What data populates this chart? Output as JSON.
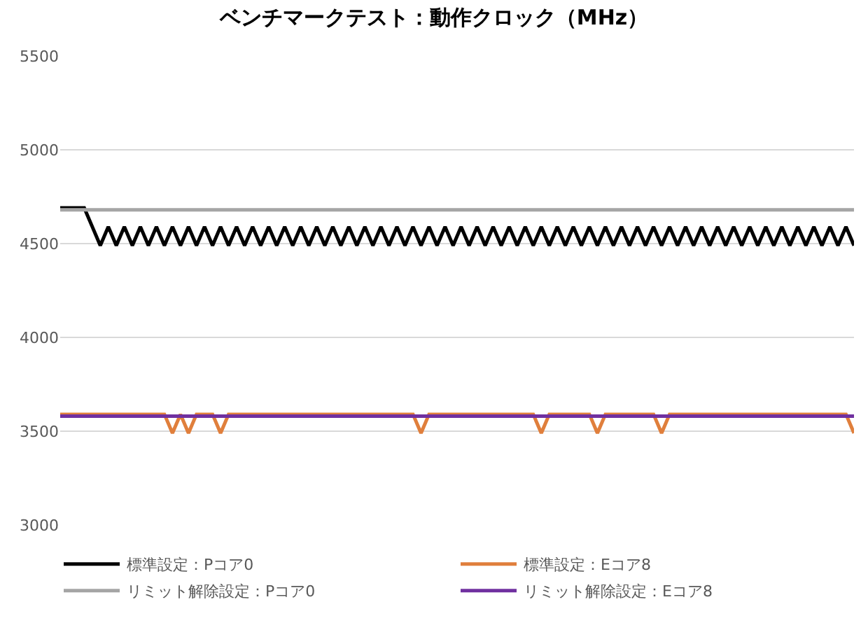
{
  "chart_data": {
    "type": "line",
    "title": "ベンチマークテスト：動作クロック（MHz）",
    "categories": [
      null,
      null,
      null,
      null,
      null,
      null,
      null,
      null,
      null,
      null,
      null,
      null,
      null,
      null,
      null,
      null,
      null,
      null,
      null,
      null,
      null,
      null,
      null,
      null,
      null,
      null,
      null,
      null,
      null,
      null,
      null,
      null,
      null,
      null,
      null,
      null,
      null,
      null,
      null,
      null,
      null,
      null,
      null,
      null,
      null,
      null,
      null,
      null,
      null,
      null,
      null,
      null,
      null,
      null,
      null,
      null,
      null,
      null,
      null,
      null,
      null,
      null,
      null,
      null,
      null,
      null,
      null,
      null,
      null,
      null,
      null,
      null,
      null,
      null,
      null,
      null,
      null,
      null,
      null,
      null,
      null,
      null,
      null,
      null,
      null,
      null,
      null,
      null,
      null,
      null,
      null,
      null,
      null,
      null,
      null,
      null,
      null,
      null,
      null,
      null
    ],
    "series": [
      {
        "name": "標準設定：Pコア0",
        "color": "#000000",
        "values": [
          4690,
          4690,
          4690,
          4690,
          4590,
          4490,
          4590,
          4490,
          4590,
          4490,
          4590,
          4490,
          4590,
          4490,
          4590,
          4490,
          4590,
          4490,
          4590,
          4490,
          4590,
          4490,
          4590,
          4490,
          4590,
          4490,
          4590,
          4490,
          4590,
          4490,
          4590,
          4490,
          4590,
          4490,
          4590,
          4490,
          4590,
          4490,
          4590,
          4490,
          4590,
          4490,
          4590,
          4490,
          4590,
          4490,
          4590,
          4490,
          4590,
          4490,
          4590,
          4490,
          4590,
          4490,
          4590,
          4490,
          4590,
          4490,
          4590,
          4490,
          4590,
          4490,
          4590,
          4490,
          4590,
          4490,
          4590,
          4490,
          4590,
          4490,
          4590,
          4490,
          4590,
          4490,
          4590,
          4490,
          4590,
          4490,
          4590,
          4490,
          4590,
          4490,
          4590,
          4490,
          4590,
          4490,
          4590,
          4490,
          4590,
          4490,
          4590,
          4490,
          4590,
          4490,
          4590,
          4490,
          4590,
          4490,
          4590,
          4490
        ]
      },
      {
        "name": "標準設定：Eコア8",
        "color": "#e07f3c",
        "values": [
          3590,
          3590,
          3590,
          3590,
          3590,
          3590,
          3590,
          3590,
          3590,
          3590,
          3590,
          3590,
          3590,
          3590,
          3490,
          3590,
          3490,
          3590,
          3590,
          3590,
          3490,
          3590,
          3590,
          3590,
          3590,
          3590,
          3590,
          3590,
          3590,
          3590,
          3590,
          3590,
          3590,
          3590,
          3590,
          3590,
          3590,
          3590,
          3590,
          3590,
          3590,
          3590,
          3590,
          3590,
          3590,
          3490,
          3590,
          3590,
          3590,
          3590,
          3590,
          3590,
          3590,
          3590,
          3590,
          3590,
          3590,
          3590,
          3590,
          3590,
          3490,
          3590,
          3590,
          3590,
          3590,
          3590,
          3590,
          3490,
          3590,
          3590,
          3590,
          3590,
          3590,
          3590,
          3590,
          3490,
          3590,
          3590,
          3590,
          3590,
          3590,
          3590,
          3590,
          3590,
          3590,
          3590,
          3590,
          3590,
          3590,
          3590,
          3590,
          3590,
          3590,
          3590,
          3590,
          3590,
          3590,
          3590,
          3590,
          3490
        ]
      },
      {
        "name": "リミット解除設定：Pコア0",
        "color": "#a5a5a5",
        "values": [
          4680,
          4680,
          4680,
          4680,
          4680,
          4680,
          4680,
          4680,
          4680,
          4680,
          4680,
          4680,
          4680,
          4680,
          4680,
          4680,
          4680,
          4680,
          4680,
          4680,
          4680,
          4680,
          4680,
          4680,
          4680,
          4680,
          4680,
          4680,
          4680,
          4680,
          4680,
          4680,
          4680,
          4680,
          4680,
          4680,
          4680,
          4680,
          4680,
          4680,
          4680,
          4680,
          4680,
          4680,
          4680,
          4680,
          4680,
          4680,
          4680,
          4680,
          4680,
          4680,
          4680,
          4680,
          4680,
          4680,
          4680,
          4680,
          4680,
          4680,
          4680,
          4680,
          4680,
          4680,
          4680,
          4680,
          4680,
          4680,
          4680,
          4680,
          4680,
          4680,
          4680,
          4680,
          4680,
          4680,
          4680,
          4680,
          4680,
          4680,
          4680,
          4680,
          4680,
          4680,
          4680,
          4680,
          4680,
          4680,
          4680,
          4680,
          4680,
          4680,
          4680,
          4680,
          4680,
          4680,
          4680,
          4680,
          4680,
          4680
        ]
      },
      {
        "name": "リミット解除設定：Eコア8",
        "color": "#7030a0",
        "values": [
          3580,
          3580,
          3580,
          3580,
          3580,
          3580,
          3580,
          3580,
          3580,
          3580,
          3580,
          3580,
          3580,
          3580,
          3580,
          3580,
          3580,
          3580,
          3580,
          3580,
          3580,
          3580,
          3580,
          3580,
          3580,
          3580,
          3580,
          3580,
          3580,
          3580,
          3580,
          3580,
          3580,
          3580,
          3580,
          3580,
          3580,
          3580,
          3580,
          3580,
          3580,
          3580,
          3580,
          3580,
          3580,
          3580,
          3580,
          3580,
          3580,
          3580,
          3580,
          3580,
          3580,
          3580,
          3580,
          3580,
          3580,
          3580,
          3580,
          3580,
          3580,
          3580,
          3580,
          3580,
          3580,
          3580,
          3580,
          3580,
          3580,
          3580,
          3580,
          3580,
          3580,
          3580,
          3580,
          3580,
          3580,
          3580,
          3580,
          3580,
          3580,
          3580,
          3580,
          3580,
          3580,
          3580,
          3580,
          3580,
          3580,
          3580,
          3580,
          3580,
          3580,
          3580,
          3580,
          3580,
          3580,
          3580,
          3580,
          3580
        ]
      }
    ],
    "ylim": [
      3000,
      5500
    ],
    "yticks": [
      3000,
      3500,
      4000,
      4500,
      5000,
      5500
    ],
    "grid": "y",
    "legend": "bottom"
  }
}
